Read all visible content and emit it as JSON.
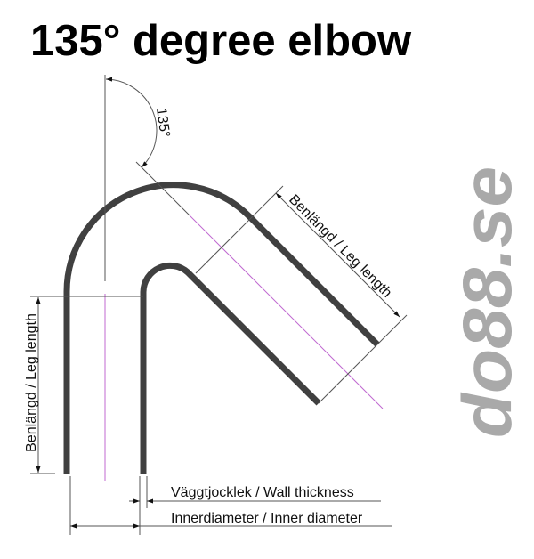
{
  "title": "135° degree elbow",
  "angle_label": "135°",
  "labels": {
    "leg_length_left": "Benlängd / Leg length",
    "leg_length_right": "Benlängd / Leg length",
    "wall_thickness": "Väggtjocklek / Wall thickness",
    "inner_diameter": "Innerdiameter / Inner diameter"
  },
  "logo": "do88.se",
  "colors": {
    "pipe": "#404040",
    "centerline": "#c06ad0",
    "logo": "#a9a9a9"
  }
}
